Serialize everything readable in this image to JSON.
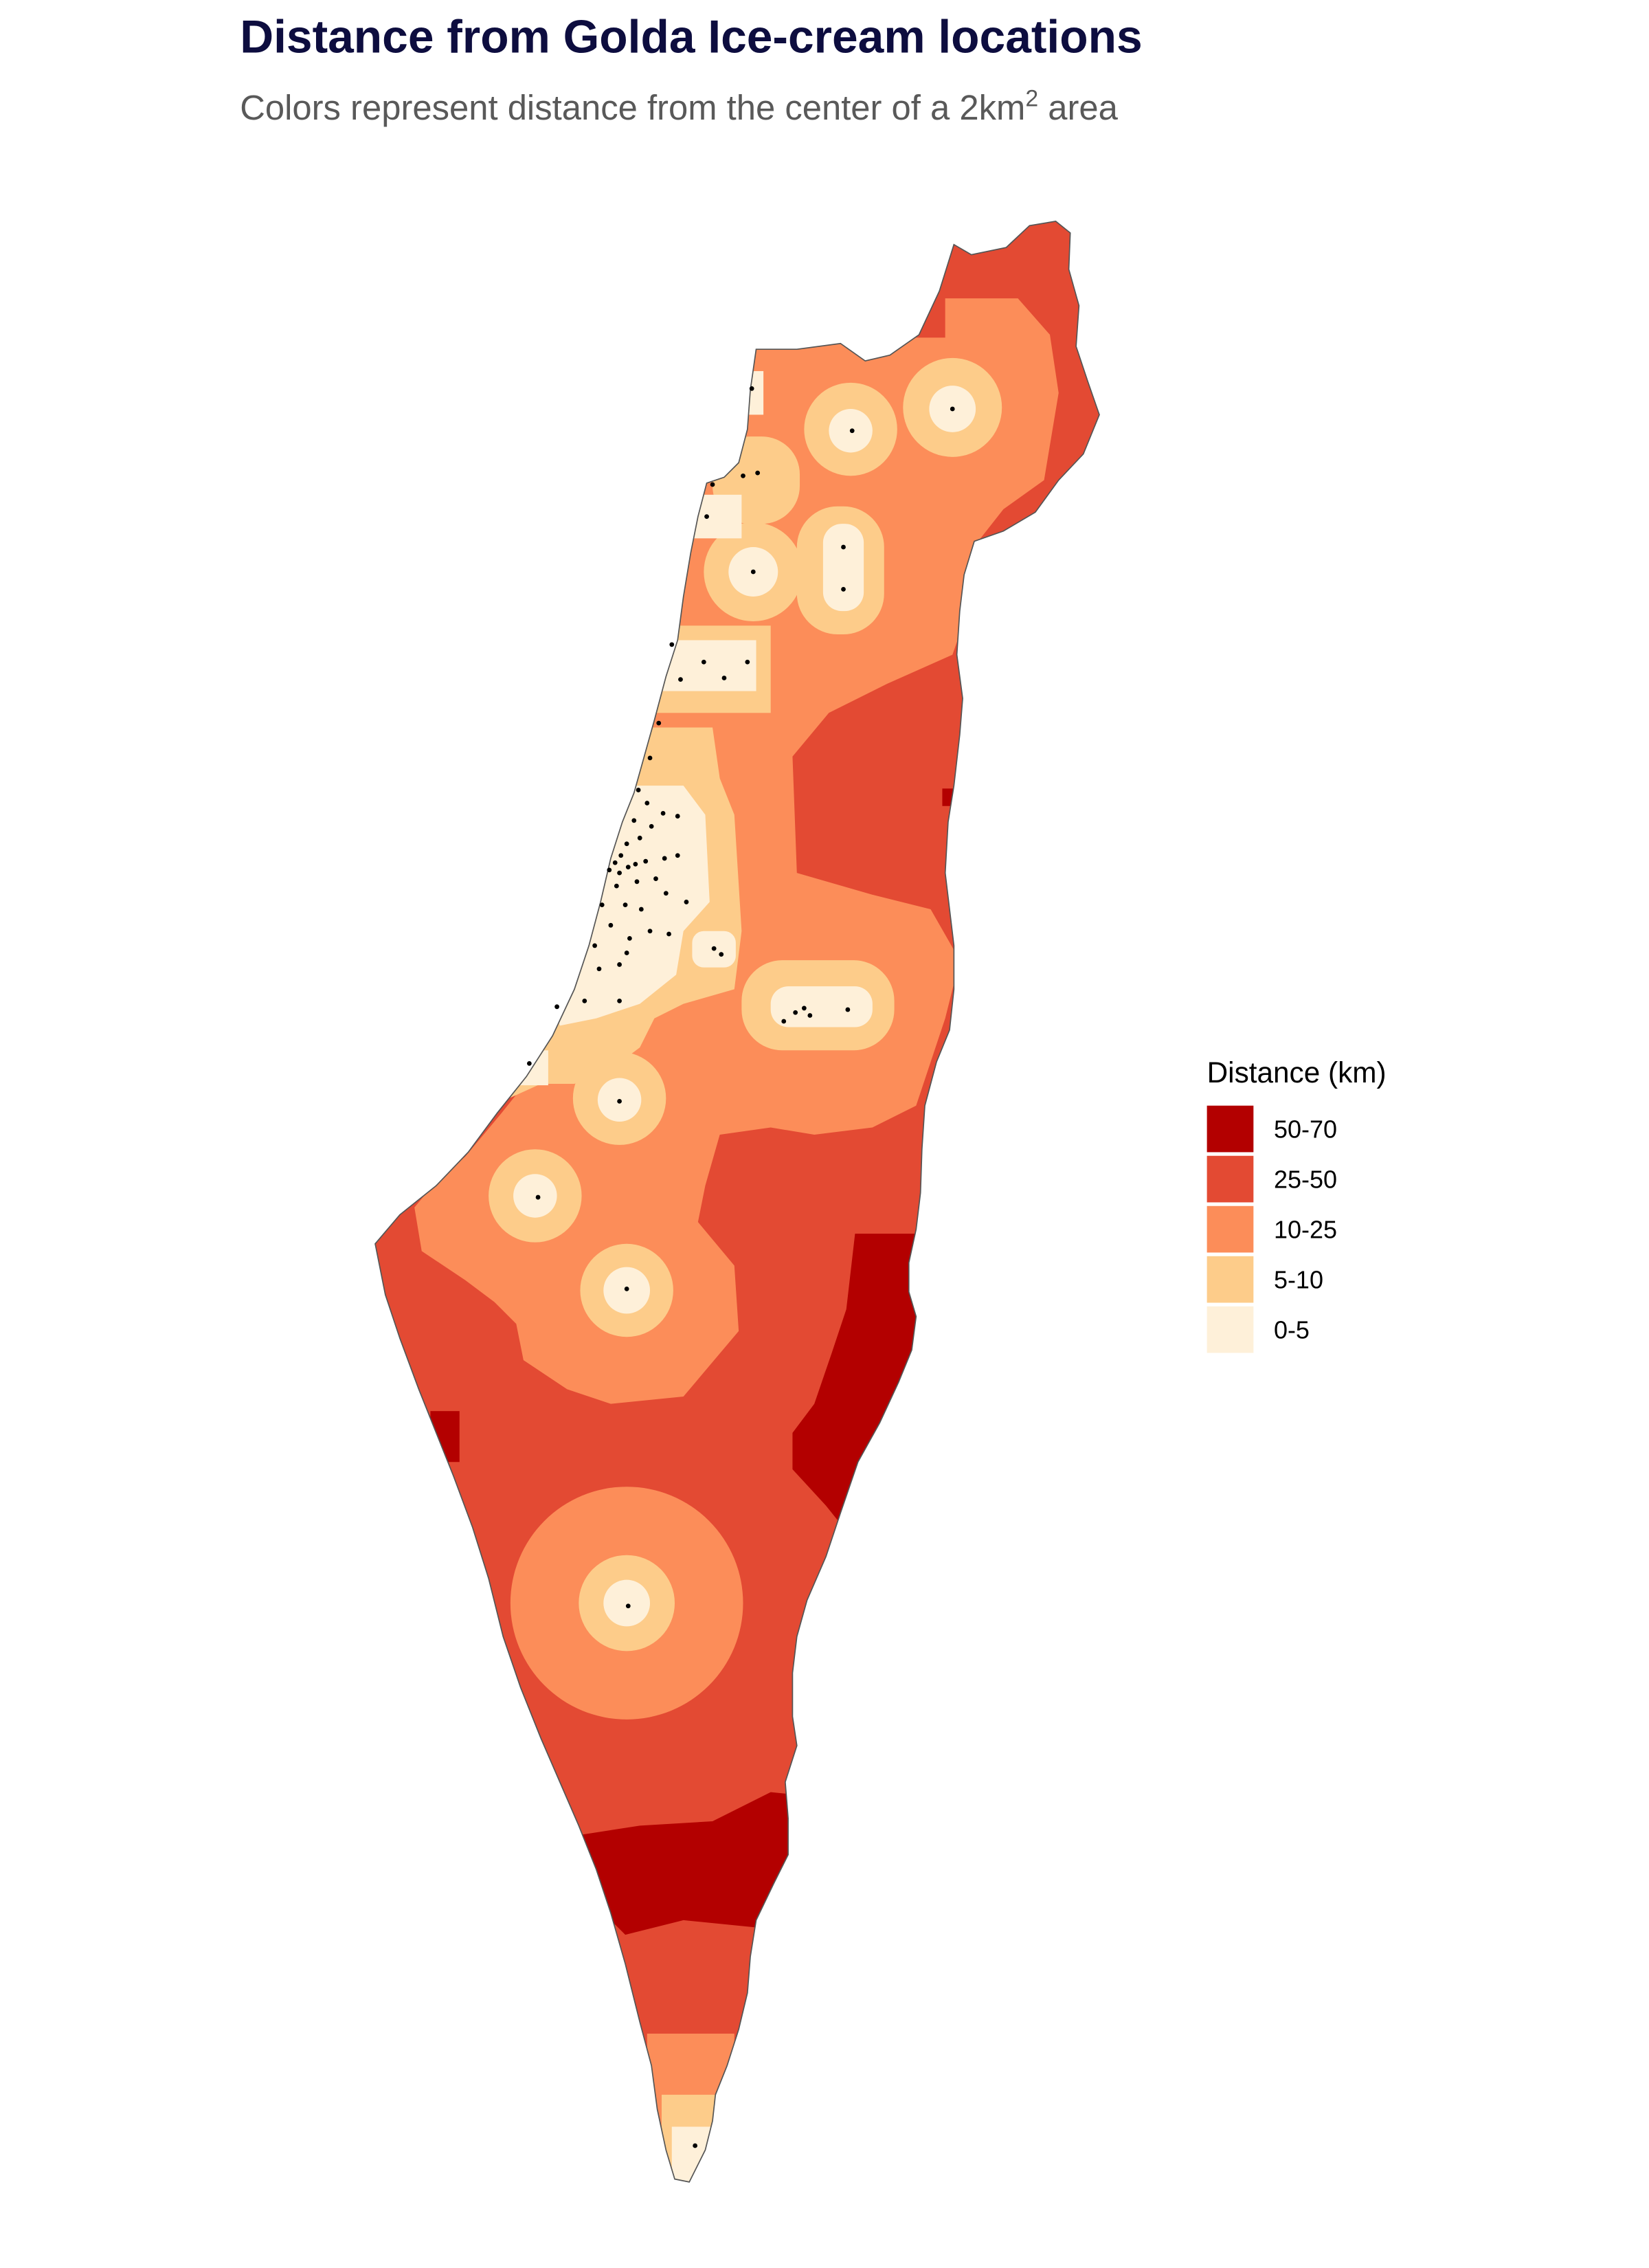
{
  "title": "Distance from Golda Ice-cream locations",
  "subtitle": {
    "prefix": "Colors represent distance from the center of a 2km",
    "superscript": "2",
    "suffix": " area"
  },
  "legend": {
    "title": "Distance (km)",
    "items": [
      {
        "label": "50-70",
        "color": "#b30000"
      },
      {
        "label": "25-50",
        "color": "#e34a33"
      },
      {
        "label": "10-25",
        "color": "#fc8d59"
      },
      {
        "label": "5-10",
        "color": "#fdcc8a"
      },
      {
        "label": "0-5",
        "color": "#fef0d9"
      }
    ]
  },
  "store_marker_color": "#000000"
}
